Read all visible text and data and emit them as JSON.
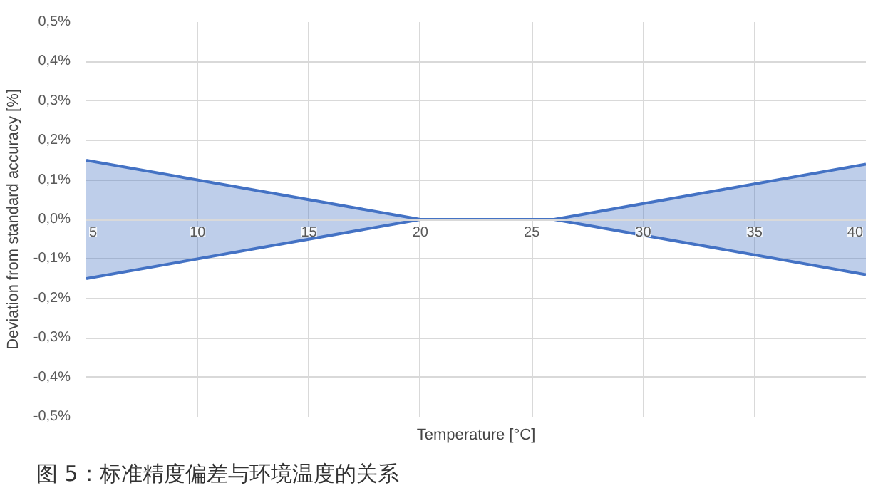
{
  "chart_data": {
    "type": "line",
    "title": "图 5：标准精度偏差与环境温度的关系",
    "xlabel": "Temperature [°C]",
    "ylabel": "Deviation from standard accuracy [%]",
    "x": [
      5,
      20,
      26,
      40
    ],
    "series": [
      {
        "color": "#4472c4",
        "values": [
          0.15,
          0,
          0,
          0.14
        ],
        "lower": [
          -0.15,
          0,
          0,
          -0.14
        ],
        "upper": [
          0.15,
          0,
          0,
          0.14
        ]
      },
      {
        "color": "#4472c4",
        "values": [
          -0.15,
          0,
          0,
          -0.14
        ]
      }
    ],
    "xlim": [
      5,
      40
    ],
    "xticks": [
      5,
      10,
      15,
      20,
      25,
      30,
      35,
      40
    ],
    "ylim": [
      -0.5,
      0.5
    ],
    "yticks": [
      {
        "value": -0.5,
        "label": "-0,5%"
      },
      {
        "value": -0.4,
        "label": "-0,4%"
      },
      {
        "value": -0.3,
        "label": "-0,3%"
      },
      {
        "value": -0.2,
        "label": "-0,2%"
      },
      {
        "value": -0.1,
        "label": "-0,1%"
      },
      {
        "value": 0,
        "label": "0,0%"
      },
      {
        "value": 0.1,
        "label": "0,1%"
      },
      {
        "value": 0.2,
        "label": "0,2%"
      },
      {
        "value": 0.3,
        "label": "0,3%"
      },
      {
        "value": 0.4,
        "label": "0,4%"
      },
      {
        "value": 0.5,
        "label": "0,5%"
      }
    ],
    "grid": true,
    "marker": "none",
    "line_style": "solid"
  }
}
